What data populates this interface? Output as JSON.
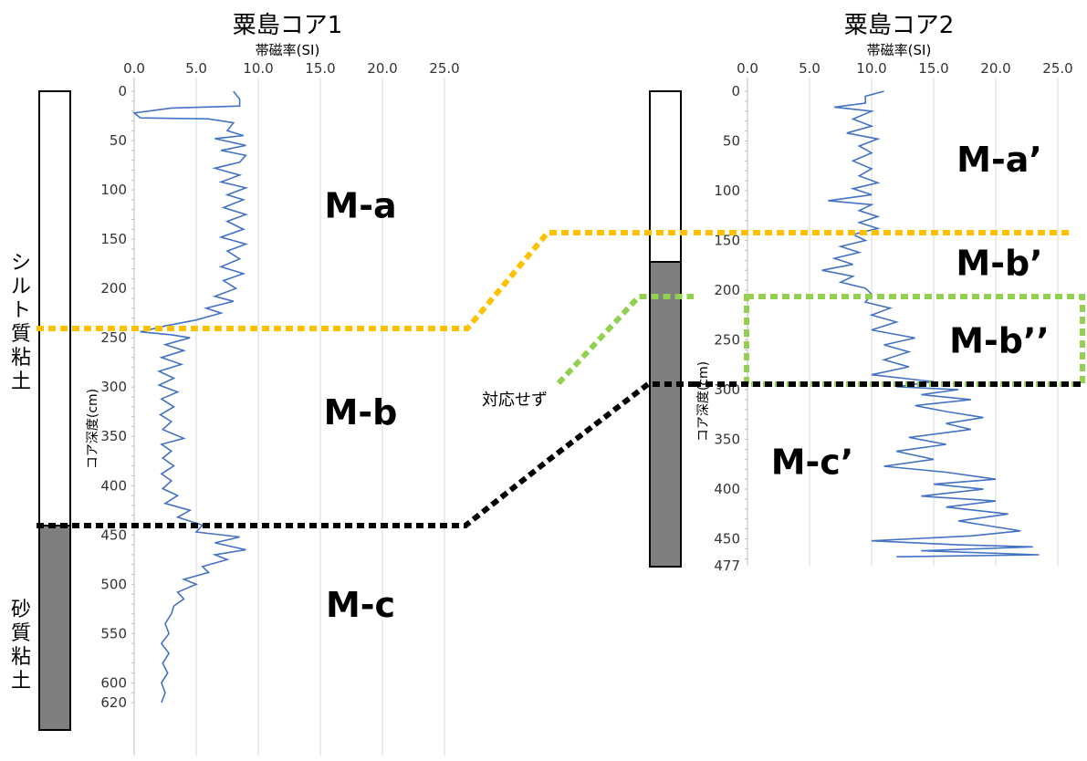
{
  "chart_data": [
    {
      "type": "line",
      "title": "粟島コア1",
      "xlabel": "帯磁率(SI)",
      "ylabel": "コア深度(cm)",
      "xlim": [
        0,
        25
      ],
      "ylim": [
        0,
        620
      ],
      "x_ticks": [
        "0.0",
        "5.0",
        "10.0",
        "15.0",
        "20.0",
        "25.0"
      ],
      "y_ticks": [
        "0",
        "50",
        "100",
        "150",
        "200",
        "250",
        "300",
        "350",
        "400",
        "450",
        "500",
        "550",
        "600",
        "620"
      ],
      "orientation": "depth-downward",
      "series": [
        {
          "color": "#4472c4",
          "points": [
            [
              8,
              0
            ],
            [
              8.5,
              8
            ],
            [
              8.5,
              15
            ],
            [
              3,
              17
            ],
            [
              0,
              22
            ],
            [
              0.5,
              27
            ],
            [
              6,
              28
            ],
            [
              8,
              32
            ],
            [
              7.5,
              40
            ],
            [
              8.8,
              45
            ],
            [
              6.5,
              48
            ],
            [
              9,
              55
            ],
            [
              7,
              60
            ],
            [
              9,
              65
            ],
            [
              8.5,
              72
            ],
            [
              6.5,
              78
            ],
            [
              8.5,
              85
            ],
            [
              7,
              92
            ],
            [
              9,
              98
            ],
            [
              7.5,
              105
            ],
            [
              8.8,
              110
            ],
            [
              7.2,
              118
            ],
            [
              9,
              125
            ],
            [
              7.5,
              132
            ],
            [
              8.8,
              140
            ],
            [
              7,
              148
            ],
            [
              9,
              155
            ],
            [
              7.5,
              162
            ],
            [
              8.5,
              170
            ],
            [
              7,
              178
            ],
            [
              8.8,
              185
            ],
            [
              7.2,
              192
            ],
            [
              8.2,
              200
            ],
            [
              6.5,
              208
            ],
            [
              8,
              213
            ],
            [
              5.8,
              220
            ],
            [
              7,
              225
            ],
            [
              5,
              232
            ],
            [
              2.5,
              238
            ],
            [
              0.5,
              244
            ],
            [
              3,
              247
            ],
            [
              4.5,
              250
            ],
            [
              2.5,
              257
            ],
            [
              4,
              263
            ],
            [
              2.2,
              270
            ],
            [
              3.8,
              277
            ],
            [
              2,
              284
            ],
            [
              3.2,
              291
            ],
            [
              2,
              298
            ],
            [
              3.5,
              305
            ],
            [
              2.2,
              312
            ],
            [
              3.2,
              320
            ],
            [
              2.1,
              328
            ],
            [
              3,
              335
            ],
            [
              2.3,
              343
            ],
            [
              4,
              352
            ],
            [
              2.2,
              358
            ],
            [
              3,
              365
            ],
            [
              2.3,
              372
            ],
            [
              3.2,
              380
            ],
            [
              2.2,
              388
            ],
            [
              3,
              395
            ],
            [
              2.3,
              403
            ],
            [
              3.5,
              410
            ],
            [
              2.5,
              418
            ],
            [
              4.5,
              425
            ],
            [
              3.5,
              432
            ],
            [
              5.5,
              440
            ],
            [
              5,
              447
            ],
            [
              8.5,
              452
            ],
            [
              6.5,
              458
            ],
            [
              9,
              465
            ],
            [
              6.5,
              470
            ],
            [
              7.5,
              475
            ],
            [
              5.5,
              482
            ],
            [
              6,
              488
            ],
            [
              4,
              495
            ],
            [
              5,
              500
            ],
            [
              3.5,
              508
            ],
            [
              4,
              515
            ],
            [
              3.2,
              522
            ],
            [
              3,
              530
            ],
            [
              2.5,
              540
            ],
            [
              2.8,
              550
            ],
            [
              2.2,
              560
            ],
            [
              2.8,
              570
            ],
            [
              2.3,
              580
            ],
            [
              2.7,
              590
            ],
            [
              2.2,
              600
            ],
            [
              2.5,
              610
            ],
            [
              2.2,
              620
            ]
          ]
        }
      ],
      "units": [
        {
          "label": "M-a",
          "depth": 115
        },
        {
          "label": "M-b",
          "depth": 325
        },
        {
          "label": "M-c",
          "depth": 520
        }
      ],
      "lithology": [
        {
          "name": "シルト質粘土",
          "from": 0,
          "to": 425,
          "color": "#ffffff"
        },
        {
          "name": "砂質粘土",
          "from": 425,
          "to": 620,
          "color": "#7f7f7f"
        }
      ],
      "boundaries": [
        {
          "depth": 233,
          "color": "#ffc000"
        },
        {
          "depth": 425,
          "color": "#000000"
        }
      ]
    },
    {
      "type": "line",
      "title": "粟島コア2",
      "xlabel": "帯磁率(SI)",
      "ylabel": "コア深度(cm)",
      "xlim": [
        0,
        25
      ],
      "ylim": [
        0,
        477
      ],
      "x_ticks": [
        "0.0",
        "5.0",
        "10.0",
        "15.0",
        "20.0",
        "25.0"
      ],
      "y_ticks": [
        "0",
        "50",
        "100",
        "150",
        "200",
        "250",
        "300",
        "350",
        "400",
        "450",
        "477"
      ],
      "orientation": "depth-downward",
      "series": [
        {
          "color": "#4472c4",
          "points": [
            [
              11,
              0
            ],
            [
              9.5,
              5
            ],
            [
              9.5,
              12
            ],
            [
              7,
              16
            ],
            [
              10,
              20
            ],
            [
              8.5,
              28
            ],
            [
              10,
              35
            ],
            [
              8,
              42
            ],
            [
              10.5,
              48
            ],
            [
              9,
              55
            ],
            [
              10,
              62
            ],
            [
              8.5,
              70
            ],
            [
              10,
              78
            ],
            [
              9,
              85
            ],
            [
              10.5,
              92
            ],
            [
              8.5,
              98
            ],
            [
              10,
              104
            ],
            [
              6.5,
              110
            ],
            [
              10,
              114
            ],
            [
              9,
              120
            ],
            [
              10.5,
              126
            ],
            [
              9,
              132
            ],
            [
              10.5,
              138
            ],
            [
              8.5,
              144
            ],
            [
              9.5,
              150
            ],
            [
              7.5,
              156
            ],
            [
              9,
              162
            ],
            [
              7,
              168
            ],
            [
              8.5,
              174
            ],
            [
              6,
              180
            ],
            [
              8.5,
              186
            ],
            [
              7.5,
              192
            ],
            [
              9.5,
              198
            ],
            [
              10,
              204
            ],
            [
              9.5,
              212
            ],
            [
              11.5,
              218
            ],
            [
              10,
              225
            ],
            [
              12,
              232
            ],
            [
              10,
              240
            ],
            [
              13.5,
              248
            ],
            [
              11,
              255
            ],
            [
              13,
              262
            ],
            [
              11,
              270
            ],
            [
              13,
              277
            ],
            [
              10,
              285
            ],
            [
              15,
              292
            ],
            [
              12,
              297
            ],
            [
              17,
              300
            ],
            [
              14,
              305
            ],
            [
              18,
              310
            ],
            [
              13.5,
              316
            ],
            [
              16,
              322
            ],
            [
              19,
              328
            ],
            [
              16,
              334
            ],
            [
              18,
              340
            ],
            [
              13,
              348
            ],
            [
              16,
              355
            ],
            [
              12,
              362
            ],
            [
              15,
              370
            ],
            [
              11,
              377
            ],
            [
              16,
              383
            ],
            [
              20,
              390
            ],
            [
              15,
              395
            ],
            [
              19,
              400
            ],
            [
              14,
              407
            ],
            [
              20,
              412
            ],
            [
              16,
              418
            ],
            [
              21,
              425
            ],
            [
              17,
              432
            ],
            [
              20,
              438
            ],
            [
              22,
              442
            ],
            [
              18,
              447
            ],
            [
              10,
              452
            ],
            [
              17,
              456
            ],
            [
              23,
              458
            ],
            [
              14,
              462
            ],
            [
              23.5,
              466
            ],
            [
              12,
              468
            ]
          ]
        }
      ],
      "units": [
        {
          "label": "M-a’",
          "depth": 68
        },
        {
          "label": "M-b’",
          "depth": 172
        },
        {
          "label": "M-b’’",
          "depth": 250
        },
        {
          "label": "M-c’",
          "depth": 372
        }
      ],
      "lithology": [
        {
          "name": "",
          "from": 0,
          "to": 287,
          "color": "#ffffff"
        },
        {
          "name": "",
          "from": 287,
          "to": 477,
          "color": "#7f7f7f"
        }
      ],
      "boundaries": [
        {
          "depth": 137,
          "color": "#ffc000"
        },
        {
          "depth": 200,
          "color": "#92d050"
        },
        {
          "depth": 287,
          "color": "#000000"
        }
      ]
    }
  ],
  "note": "対応せず",
  "colors": {
    "line": "#4472c4",
    "yellow": "#ffc000",
    "green": "#92d050",
    "black": "#000000",
    "sand": "#7f7f7f"
  }
}
